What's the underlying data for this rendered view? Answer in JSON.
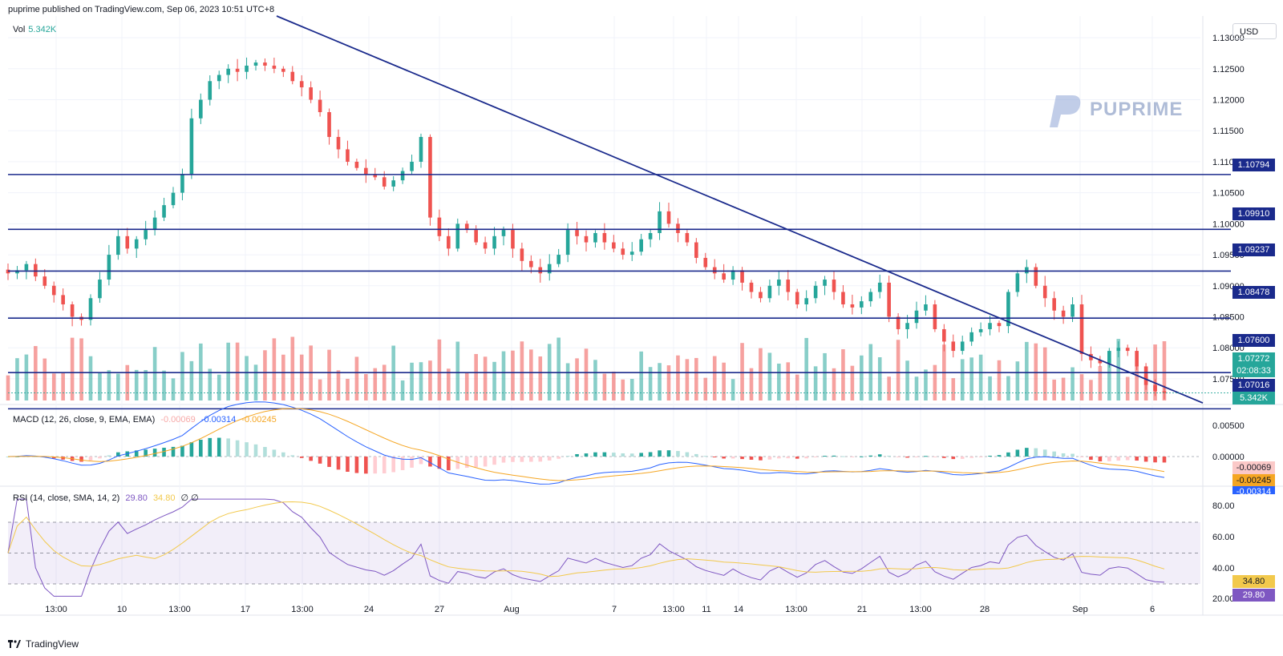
{
  "header": {
    "published": "puprime published on TradingView.com, Sep 06, 2023 10:51 UTC+8"
  },
  "currency_button": "USD",
  "watermark": {
    "text": "PUPRIME"
  },
  "footer": {
    "brand": "TradingView"
  },
  "colors": {
    "up": "#26a69a",
    "down": "#ef5350",
    "trend": "#1a2a8c",
    "macd": "#2962ff",
    "signal": "#f5a623",
    "rsi": "#7e57c2",
    "rsi_ma": "#f2c94c"
  },
  "panes": {
    "vol": {
      "label": "Vol",
      "value": "5.342K"
    },
    "macd": {
      "label": "MACD (12, 26, close, 9, EMA, EMA)",
      "hist": "-0.00069",
      "macd": "-0.00314",
      "signal": "-0.00245"
    },
    "rsi": {
      "label": "RSI (14, close, SMA, 14, 2)",
      "rsi": "29.80",
      "ma": "34.80",
      "extra": "∅ ∅"
    }
  },
  "price_axis": {
    "ticks": [
      "1.13000",
      "1.12500",
      "1.12000",
      "1.11500",
      "1.11000",
      "1.10500",
      "1.10000",
      "1.09500",
      "1.09000",
      "1.08500",
      "1.08000",
      "1.07500"
    ]
  },
  "macd_axis": {
    "ticks": [
      "0.00500",
      "0.00000"
    ]
  },
  "rsi_axis": {
    "ticks": [
      "80.00",
      "60.00",
      "40.00",
      "20.00"
    ]
  },
  "x_axis": {
    "ticks": [
      "13:00",
      "10",
      "13:00",
      "17",
      "13:00",
      "24",
      "27",
      "Aug",
      "7",
      "13:00",
      "11",
      "14",
      "13:00",
      "21",
      "13:00",
      "28",
      "Sep",
      "6"
    ]
  },
  "tags": {
    "levels": [
      "1.10794",
      "1.09910",
      "1.09237",
      "1.08478",
      "1.07600",
      "1.07016"
    ],
    "last_price": "1.07272",
    "countdown": "02:08:33",
    "volume": "5.342K",
    "macd_hist": "-0.00069",
    "macd_signal": "-0.00245",
    "macd_line": "-0.00314",
    "rsi_ma": "34.80",
    "rsi": "29.80"
  },
  "chart_data": {
    "type": "candlestick",
    "symbol_currency": "USD",
    "horizontal_levels": [
      1.10794,
      1.0991,
      1.09237,
      1.08478,
      1.076,
      1.07016
    ],
    "trendline": {
      "from_price": 1.1335,
      "to_price": 1.0711
    },
    "last_price": 1.07272,
    "closes": [
      1.092,
      1.0925,
      1.0935,
      1.0915,
      1.09,
      1.0885,
      1.087,
      1.085,
      1.0845,
      1.088,
      1.091,
      1.095,
      1.098,
      1.096,
      1.0975,
      1.099,
      1.101,
      1.103,
      1.105,
      1.108,
      1.117,
      1.12,
      1.123,
      1.124,
      1.125,
      1.1245,
      1.1255,
      1.126,
      1.1255,
      1.125,
      1.1245,
      1.123,
      1.122,
      1.12,
      1.118,
      1.114,
      1.112,
      1.11,
      1.109,
      1.108,
      1.1075,
      1.106,
      1.107,
      1.1085,
      1.11,
      1.114,
      1.101,
      1.098,
      1.096,
      1.1,
      1.099,
      1.097,
      1.096,
      1.098,
      1.099,
      1.096,
      1.094,
      1.093,
      1.092,
      1.0935,
      1.095,
      1.099,
      1.098,
      1.097,
      1.0985,
      1.097,
      1.096,
      1.095,
      1.0955,
      1.0975,
      1.0985,
      1.102,
      1.1,
      1.0985,
      1.097,
      1.0945,
      1.093,
      1.092,
      1.091,
      1.0925,
      1.0905,
      1.089,
      1.088,
      1.09,
      1.091,
      1.089,
      1.087,
      1.088,
      1.09,
      1.091,
      1.089,
      1.087,
      1.0865,
      1.0875,
      1.089,
      1.0905,
      1.085,
      1.083,
      1.084,
      1.086,
      1.087,
      1.083,
      1.081,
      1.0795,
      1.081,
      1.0825,
      1.083,
      1.084,
      1.0835,
      1.089,
      1.092,
      1.093,
      1.09,
      1.088,
      1.086,
      1.085,
      1.087,
      1.079,
      1.078,
      1.0775,
      1.0795,
      1.08,
      1.0795,
      1.077,
      1.074,
      1.073,
      1.0727
    ],
    "volume_last": "5.342K",
    "macd": {
      "hist": -0.00069,
      "macd": -0.00314,
      "signal": -0.00245
    },
    "rsi": {
      "value": 29.8,
      "ma": 34.8,
      "levels": [
        70,
        50,
        30
      ]
    }
  }
}
